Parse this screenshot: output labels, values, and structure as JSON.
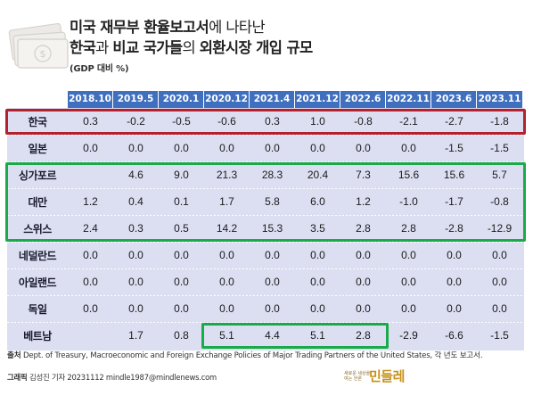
{
  "title": {
    "line1_bold": "미국 재무부 환율보고서",
    "line1_regular": "에 나타난",
    "line2_bold_a": "한국",
    "line2_regular_a": "과 ",
    "line2_bold_b": "비교 국가들",
    "line2_regular_b": "의 ",
    "line2_bold_c": "외환시장 개입 규모",
    "unit": "(GDP 대비 %)"
  },
  "chart_data": {
    "type": "table",
    "columns": [
      "2018.10",
      "2019.5",
      "2020.1",
      "2020.12",
      "2021.4",
      "2021.12",
      "2022.6",
      "2022.11",
      "2023.6",
      "2023.11"
    ],
    "rows": [
      {
        "label": "한국",
        "values": [
          "0.3",
          "-0.2",
          "-0.5",
          "-0.6",
          "0.3",
          "1.0",
          "-0.8",
          "-2.1",
          "-2.7",
          "-1.8"
        ]
      },
      {
        "label": "일본",
        "values": [
          "0.0",
          "0.0",
          "0.0",
          "0.0",
          "0.0",
          "0.0",
          "0.0",
          "0.0",
          "-1.5",
          "-1.5"
        ]
      },
      {
        "label": "싱가포르",
        "values": [
          "",
          "4.6",
          "9.0",
          "21.3",
          "28.3",
          "20.4",
          "7.3",
          "15.6",
          "15.6",
          "5.7"
        ]
      },
      {
        "label": "대만",
        "values": [
          "1.2",
          "0.4",
          "0.1",
          "1.7",
          "5.8",
          "6.0",
          "1.2",
          "-1.0",
          "-1.7",
          "-0.8"
        ]
      },
      {
        "label": "스위스",
        "values": [
          "2.4",
          "0.3",
          "0.5",
          "14.2",
          "15.3",
          "3.5",
          "2.8",
          "2.8",
          "-2.8",
          "-12.9"
        ]
      },
      {
        "label": "네덜란드",
        "values": [
          "0.0",
          "0.0",
          "0.0",
          "0.0",
          "0.0",
          "0.0",
          "0.0",
          "0.0",
          "0.0",
          "0.0"
        ]
      },
      {
        "label": "아일랜드",
        "values": [
          "0.0",
          "0.0",
          "0.0",
          "0.0",
          "0.0",
          "0.0",
          "0.0",
          "0.0",
          "0.0",
          "0.0"
        ]
      },
      {
        "label": "독일",
        "values": [
          "0.0",
          "0.0",
          "0.0",
          "0.0",
          "0.0",
          "0.0",
          "0.0",
          "0.0",
          "0.0",
          "0.0"
        ]
      },
      {
        "label": "베트남",
        "values": [
          "",
          "1.7",
          "0.8",
          "5.1",
          "4.4",
          "5.1",
          "2.8",
          "-2.9",
          "-6.6",
          "-1.5"
        ]
      }
    ],
    "highlights": [
      {
        "color": "red",
        "rows": [
          "한국"
        ]
      },
      {
        "color": "green",
        "rows": [
          "싱가포르",
          "대만",
          "스위스"
        ]
      },
      {
        "color": "green",
        "rows": [
          "베트남"
        ],
        "columns": [
          "2020.12",
          "2021.4",
          "2021.12",
          "2022.6"
        ]
      }
    ]
  },
  "footer": {
    "source_label": "출처",
    "source_text": " Dept. of Treasury, Macroeconomic and Foreign Exchange Policies of Major Trading Partners of the United States, 각 년도 보고서.",
    "credit_label": "그래픽",
    "credit_text": " 김성진 기자 20231112 mindle1987@mindlenews.com",
    "logo_small": "새로운 세상을 여는 언론",
    "logo_main": "민들레"
  },
  "colors": {
    "header_blue": "#3f6fbf",
    "body_lavender": "#dcdff2",
    "highlight_red": "#b3202e",
    "highlight_green": "#1aaa4a"
  }
}
